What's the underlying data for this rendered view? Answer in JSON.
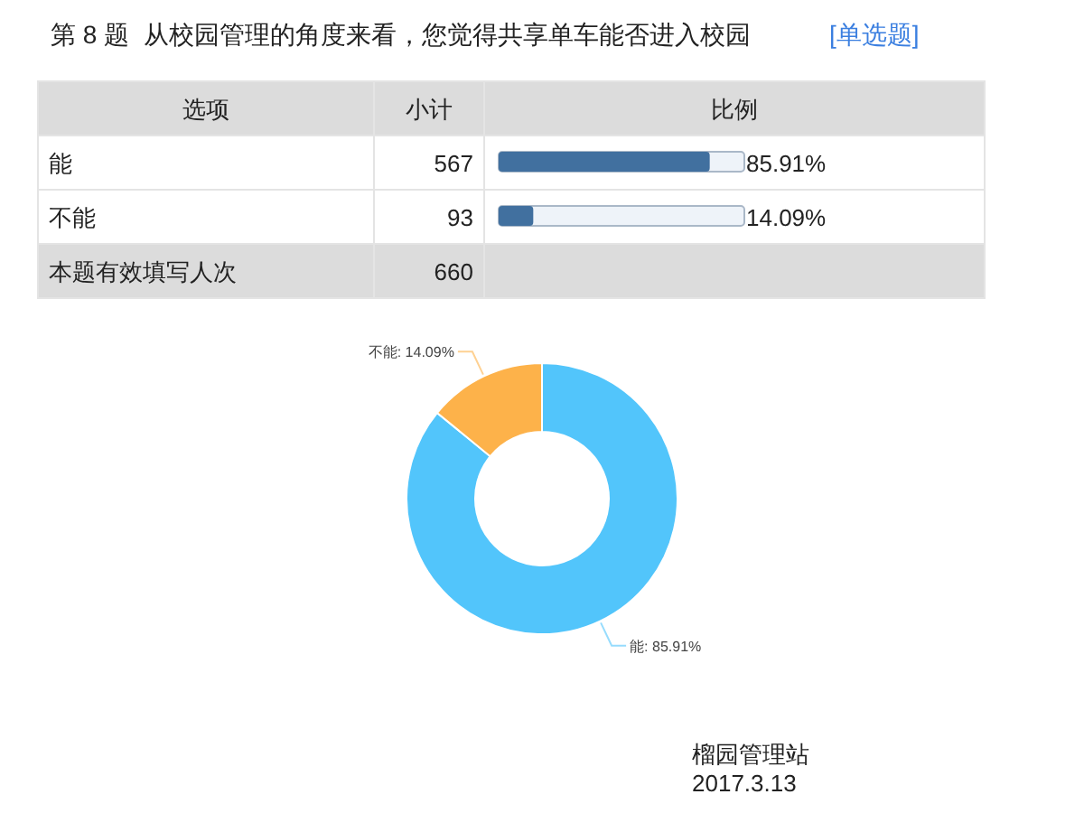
{
  "chart_data": [
    {
      "type": "bar",
      "orientation": "horizontal",
      "title": "第 8 题  从校园管理的角度来看，您觉得共享单车能否进入校园",
      "ylabel": "选项",
      "xlabel": "比例",
      "categories": [
        "能",
        "不能"
      ],
      "values": [
        85.91,
        14.09
      ],
      "value_labels": [
        "85.91%",
        "14.09%"
      ],
      "xlim": [
        0,
        100
      ],
      "color": "#41709f",
      "annotations": [
        "[单选题]",
        "小计",
        "567",
        "93",
        "本题有效填写人次",
        "660",
        "榴园管理站",
        "2017.3.13"
      ]
    },
    {
      "type": "donut",
      "categories": [
        "能",
        "不能"
      ],
      "values": [
        85.91,
        14.09
      ],
      "value_labels": [
        "85.91%",
        "14.09%"
      ],
      "colors": [
        "#52c5fb",
        "#fdb24a"
      ]
    }
  ]
}
